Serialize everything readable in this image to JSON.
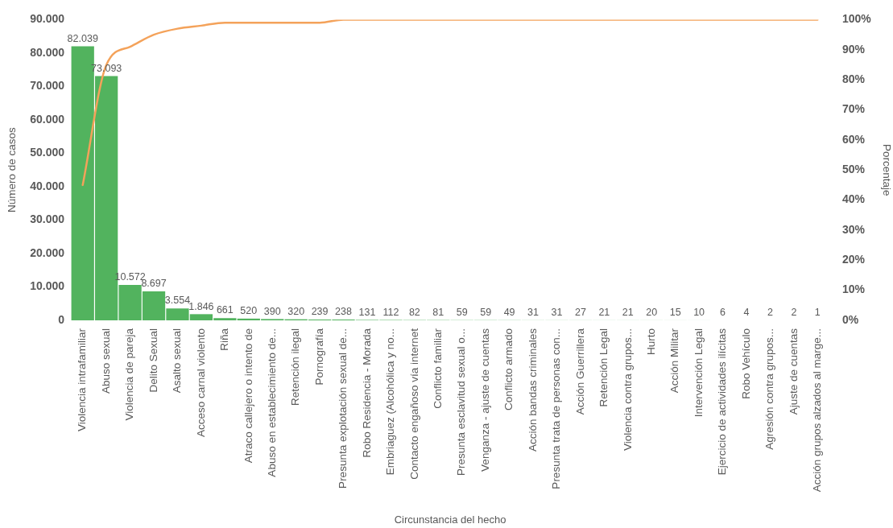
{
  "chart_data": {
    "type": "bar",
    "xlabel": "Circunstancia del hecho",
    "ylabel": "Número de casos",
    "y2label": "Porcentaje",
    "categories": [
      "Violencia intrafamiliar",
      "Abuso sexual",
      "Violencia de pareja",
      "Delito Sexual",
      "Asalto sexual",
      "Acceso carnal violento",
      "Riña",
      "Atraco callejero o intento de",
      "Abuso en establecimiento de...",
      "Retención ilegal",
      "Pornografía",
      "Presunta explotación sexual de...",
      "Robo Residencia - Morada",
      "Embriaguez (Alcohólica y no...",
      "Contacto engañoso vía internet",
      "Conflicto familiar",
      "Presunta esclavitud sexual o...",
      "Venganza - ajuste de cuentas",
      "Conflicto armado",
      "Acción bandas criminales",
      "Presunta trata de personas con...",
      "Acción Guerrillera",
      "Retención Legal",
      "Violencia contra grupos...",
      "Hurto",
      "Acción Militar",
      "Intervención Legal",
      "Ejercicio de actividades ilícitas",
      "Robo Vehículo",
      "Agresión contra grupos...",
      "Ajuste de cuentas",
      "Acción grupos alzados al marge..."
    ],
    "series": [
      {
        "color": "#52b35e",
        "values": [
          82039,
          73093,
          10572,
          8697,
          3554,
          1846,
          661,
          520,
          390,
          320,
          239,
          238,
          131,
          112,
          82,
          81,
          59,
          59,
          49,
          31,
          31,
          27,
          21,
          21,
          20,
          15,
          10,
          6,
          4,
          2,
          2,
          1
        ],
        "value_labels": [
          "82.039",
          "73.093",
          "10.572",
          "8.697",
          "3.554",
          "1.846",
          "661",
          "520",
          "390",
          "320",
          "239",
          "238",
          "131",
          "112",
          "82",
          "81",
          "59",
          "59",
          "49",
          "31",
          "31",
          "27",
          "21",
          "21",
          "20",
          "15",
          "10",
          "6",
          "4",
          "2",
          "2",
          "1"
        ]
      },
      {
        "type": "line",
        "axis": "y2",
        "color": "#f4a25a",
        "line_style": "solid",
        "values": [
          45,
          85,
          91,
          95,
          97,
          98,
          99,
          99,
          99,
          99,
          99,
          100,
          100,
          100,
          100,
          100,
          100,
          100,
          100,
          100,
          100,
          100,
          100,
          100,
          100,
          100,
          100,
          100,
          100,
          100,
          100,
          100
        ]
      }
    ],
    "ylim": [
      0,
      90000
    ],
    "yticks": [
      0,
      {
        "value": 10000,
        "label": "10.000"
      },
      {
        "value": 20000,
        "label": "20.000"
      },
      {
        "value": 30000,
        "label": "30.000"
      },
      {
        "value": 40000,
        "label": "40.000"
      },
      {
        "value": 50000,
        "label": "50.000"
      },
      {
        "value": 60000,
        "label": "60.000"
      },
      {
        "value": 70000,
        "label": "70.000"
      },
      {
        "value": 80000,
        "label": "80.000"
      },
      {
        "value": 90000,
        "label": "90.000"
      }
    ],
    "y2lim": [
      0,
      100
    ],
    "y2ticks": [
      {
        "value": 0,
        "label": "0%"
      },
      {
        "value": 10,
        "label": "10%"
      },
      {
        "value": 20,
        "label": "20%"
      },
      {
        "value": 30,
        "label": "30%"
      },
      {
        "value": 40,
        "label": "40%"
      },
      {
        "value": 50,
        "label": "50%"
      },
      {
        "value": 60,
        "label": "60%"
      },
      {
        "value": 70,
        "label": "70%"
      },
      {
        "value": 80,
        "label": "80%"
      },
      {
        "value": 90,
        "label": "90%"
      },
      {
        "value": 100,
        "label": "100%"
      }
    ],
    "grid": false,
    "legend": false,
    "marker": "none"
  }
}
